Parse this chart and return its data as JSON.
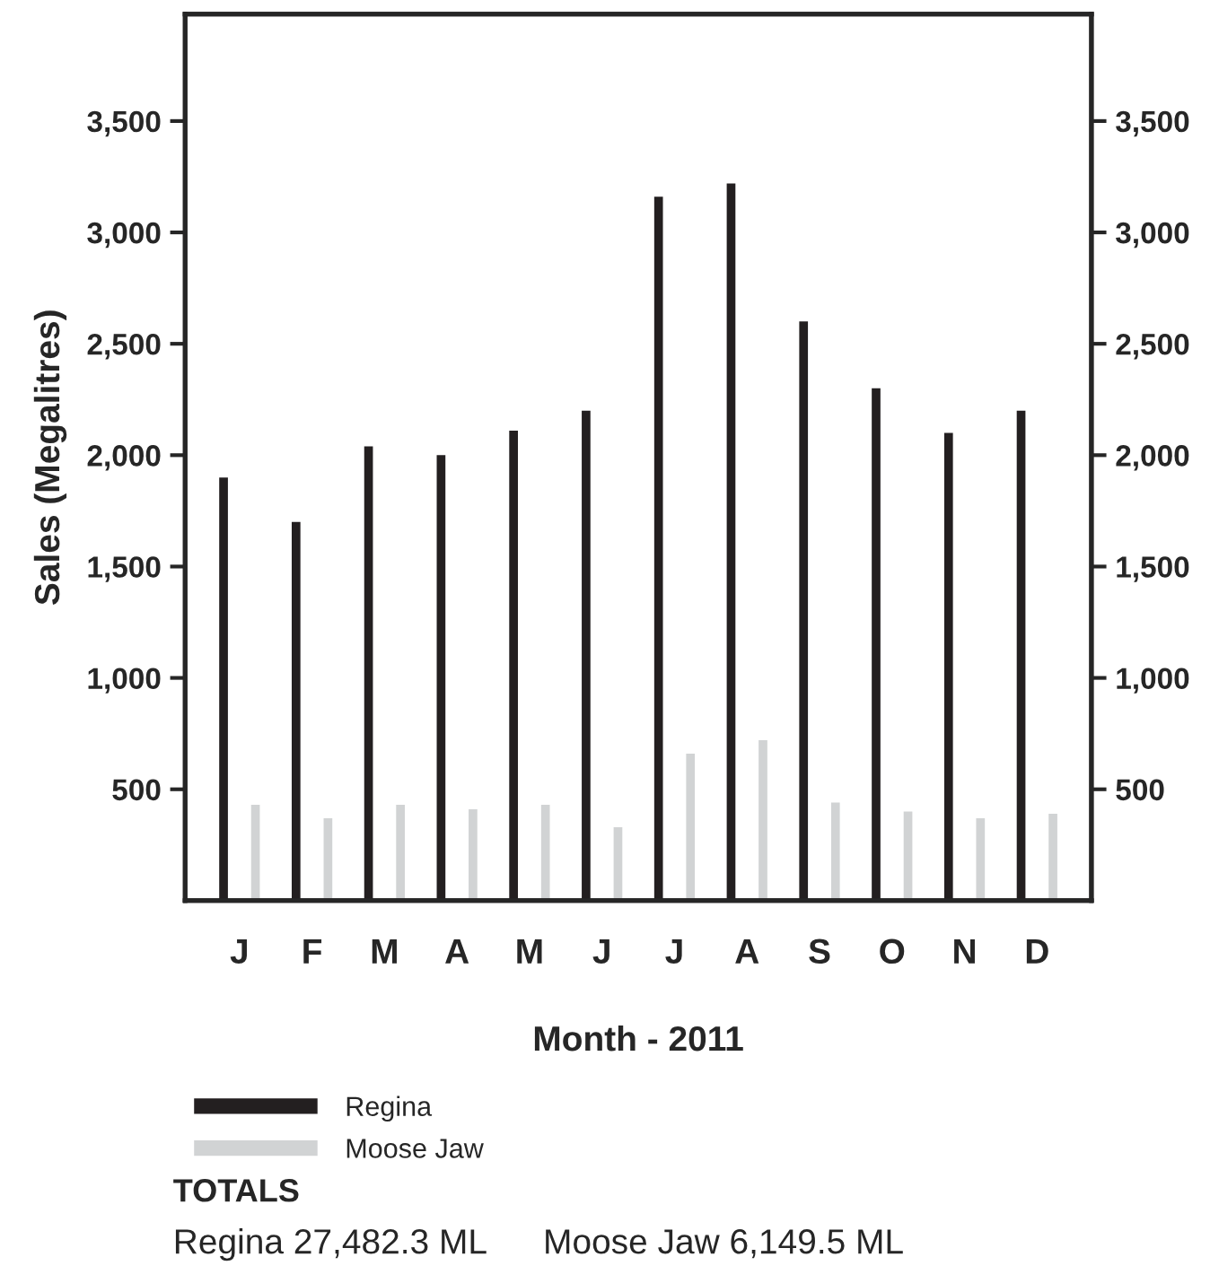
{
  "chart_data": {
    "type": "bar",
    "xlabel": "Month - 2011",
    "ylabel": "Sales (Megalitres)",
    "categories": [
      "J",
      "F",
      "M",
      "A",
      "M",
      "J",
      "J",
      "A",
      "S",
      "O",
      "N",
      "D"
    ],
    "series": [
      {
        "name": "Regina",
        "color": "#231f20",
        "values": [
          1900,
          1700,
          2040,
          2000,
          2110,
          2200,
          3160,
          3220,
          2600,
          2300,
          2100,
          2200
        ]
      },
      {
        "name": "Moose Jaw",
        "color": "#d1d3d4",
        "values": [
          430,
          370,
          430,
          410,
          430,
          330,
          660,
          720,
          440,
          400,
          370,
          390
        ]
      }
    ],
    "ylim": [
      0,
      3980
    ],
    "yticks": [
      {
        "value": 500,
        "label": "500"
      },
      {
        "value": 1000,
        "label": "1,000"
      },
      {
        "value": 1500,
        "label": "1,500"
      },
      {
        "value": 2000,
        "label": "2,000"
      },
      {
        "value": 2500,
        "label": "2,500"
      },
      {
        "value": 3000,
        "label": "3,000"
      },
      {
        "value": 3500,
        "label": "3,500"
      }
    ],
    "y2lim": [
      0,
      3980
    ],
    "y2ticks": [
      {
        "value": 500,
        "label": "500"
      },
      {
        "value": 1000,
        "label": "1,000"
      },
      {
        "value": 1500,
        "label": "1,500"
      },
      {
        "value": 2000,
        "label": "2,000"
      },
      {
        "value": 2500,
        "label": "2,500"
      },
      {
        "value": 3000,
        "label": "3,000"
      },
      {
        "value": 3500,
        "label": "3,500"
      }
    ],
    "legend": "bottom left",
    "grid": false,
    "annotations": [
      "TOTALS",
      "Regina 27,482.3 ML",
      "Moose Jaw 6,149.5 ML"
    ]
  }
}
